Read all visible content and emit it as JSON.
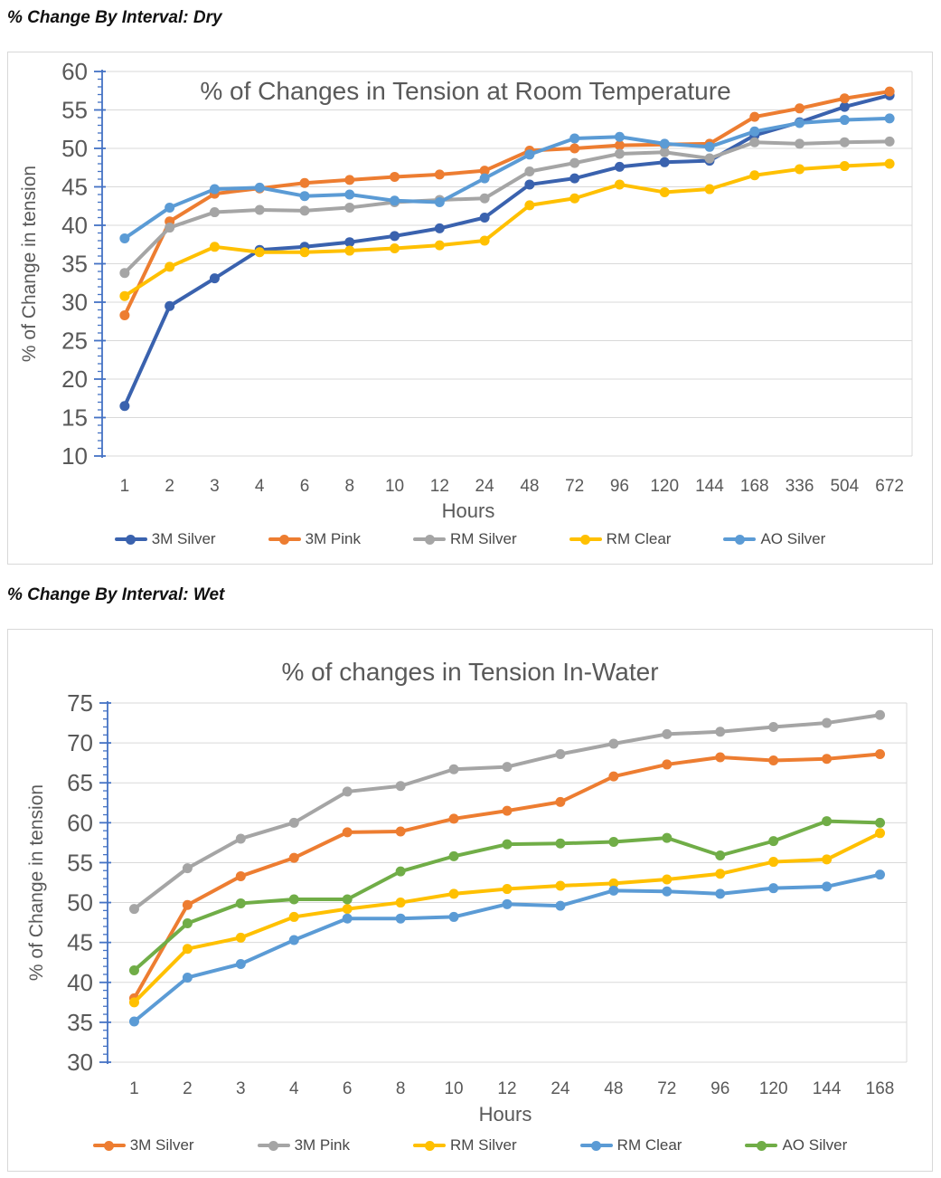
{
  "page": {
    "heading_dry": "% Change By Interval: Dry",
    "heading_wet": "% Change By Interval: Wet"
  },
  "colors": {
    "axis": "#4472C4",
    "grid": "#d9d9d9",
    "text": "#595959",
    "legend_text": "#484848",
    "panel_border": "#d8d8d8"
  },
  "chart_data": [
    {
      "type": "line",
      "title": "% of Changes in Tension at Room Temperature",
      "xlabel": "Hours",
      "ylabel": "% of Change in tension",
      "ylim": [
        10,
        60
      ],
      "yticks": [
        10,
        15,
        20,
        25,
        30,
        35,
        40,
        45,
        50,
        55,
        60
      ],
      "minor_tick_step": 1,
      "grid": true,
      "legend_position": "bottom",
      "categories": [
        "1",
        "2",
        "3",
        "4",
        "6",
        "8",
        "10",
        "12",
        "24",
        "48",
        "72",
        "96",
        "120",
        "144",
        "168",
        "336",
        "504",
        "672"
      ],
      "series": [
        {
          "name": "3M Silver",
          "color": "#3A62AE",
          "values": [
            16.5,
            29.5,
            33.1,
            36.8,
            37.2,
            37.8,
            38.6,
            39.6,
            41.0,
            45.3,
            46.1,
            47.6,
            48.2,
            48.4,
            51.7,
            53.4,
            55.4,
            56.9
          ]
        },
        {
          "name": "3M Pink",
          "color": "#ED7D31",
          "values": [
            28.3,
            40.5,
            44.1,
            44.8,
            45.5,
            45.9,
            46.3,
            46.6,
            47.1,
            49.7,
            50.0,
            50.4,
            50.5,
            50.6,
            54.1,
            55.2,
            56.5,
            57.4
          ]
        },
        {
          "name": "RM Silver",
          "color": "#A5A5A5",
          "values": [
            33.8,
            39.7,
            41.7,
            42.0,
            41.9,
            42.3,
            43.0,
            43.3,
            43.5,
            47.0,
            48.1,
            49.3,
            49.5,
            48.7,
            50.8,
            50.6,
            50.8,
            50.9
          ]
        },
        {
          "name": "RM Clear",
          "color": "#FFC000",
          "values": [
            30.8,
            34.6,
            37.2,
            36.5,
            36.5,
            36.7,
            37.0,
            37.4,
            38.0,
            42.6,
            43.5,
            45.3,
            44.3,
            44.7,
            46.5,
            47.3,
            47.7,
            48.0
          ]
        },
        {
          "name": "AO Silver",
          "color": "#5B9BD5",
          "values": [
            38.3,
            42.3,
            44.7,
            44.9,
            43.8,
            44.0,
            43.2,
            43.0,
            46.1,
            49.2,
            51.3,
            51.5,
            50.6,
            50.2,
            52.2,
            53.3,
            53.7,
            53.9
          ]
        }
      ]
    },
    {
      "type": "line",
      "title": "% of changes in Tension In-Water",
      "xlabel": "Hours",
      "ylabel": "% of Change in tension",
      "ylim": [
        30,
        75
      ],
      "yticks": [
        30,
        35,
        40,
        45,
        50,
        55,
        60,
        65,
        70,
        75
      ],
      "minor_tick_step": 1,
      "grid": true,
      "legend_position": "bottom",
      "categories": [
        "1",
        "2",
        "3",
        "4",
        "6",
        "8",
        "10",
        "12",
        "24",
        "48",
        "72",
        "96",
        "120",
        "144",
        "168"
      ],
      "series": [
        {
          "name": "3M Silver",
          "color": "#ED7D31",
          "values": [
            38.0,
            49.7,
            53.3,
            55.6,
            58.8,
            58.9,
            60.5,
            61.5,
            62.6,
            65.8,
            67.3,
            68.2,
            67.8,
            68.0,
            68.6
          ]
        },
        {
          "name": "3M Pink",
          "color": "#A5A5A5",
          "values": [
            49.2,
            54.3,
            58.0,
            60.0,
            63.9,
            64.6,
            66.7,
            67.0,
            68.6,
            69.9,
            71.1,
            71.4,
            72.0,
            72.5,
            73.5
          ]
        },
        {
          "name": "RM Silver",
          "color": "#FFC000",
          "values": [
            37.5,
            44.2,
            45.6,
            48.2,
            49.2,
            50.0,
            51.1,
            51.7,
            52.1,
            52.4,
            52.9,
            53.6,
            55.1,
            55.4,
            58.7
          ]
        },
        {
          "name": "RM Clear",
          "color": "#5B9BD5",
          "values": [
            35.1,
            40.6,
            42.3,
            45.3,
            48.0,
            48.0,
            48.2,
            49.8,
            49.6,
            51.5,
            51.4,
            51.1,
            51.8,
            52.0,
            53.5
          ]
        },
        {
          "name": "AO Silver",
          "color": "#70AD47",
          "values": [
            41.5,
            47.4,
            49.9,
            50.4,
            50.4,
            53.9,
            55.8,
            57.3,
            57.4,
            57.6,
            58.1,
            55.9,
            57.7,
            60.2,
            60.0
          ]
        }
      ]
    }
  ]
}
